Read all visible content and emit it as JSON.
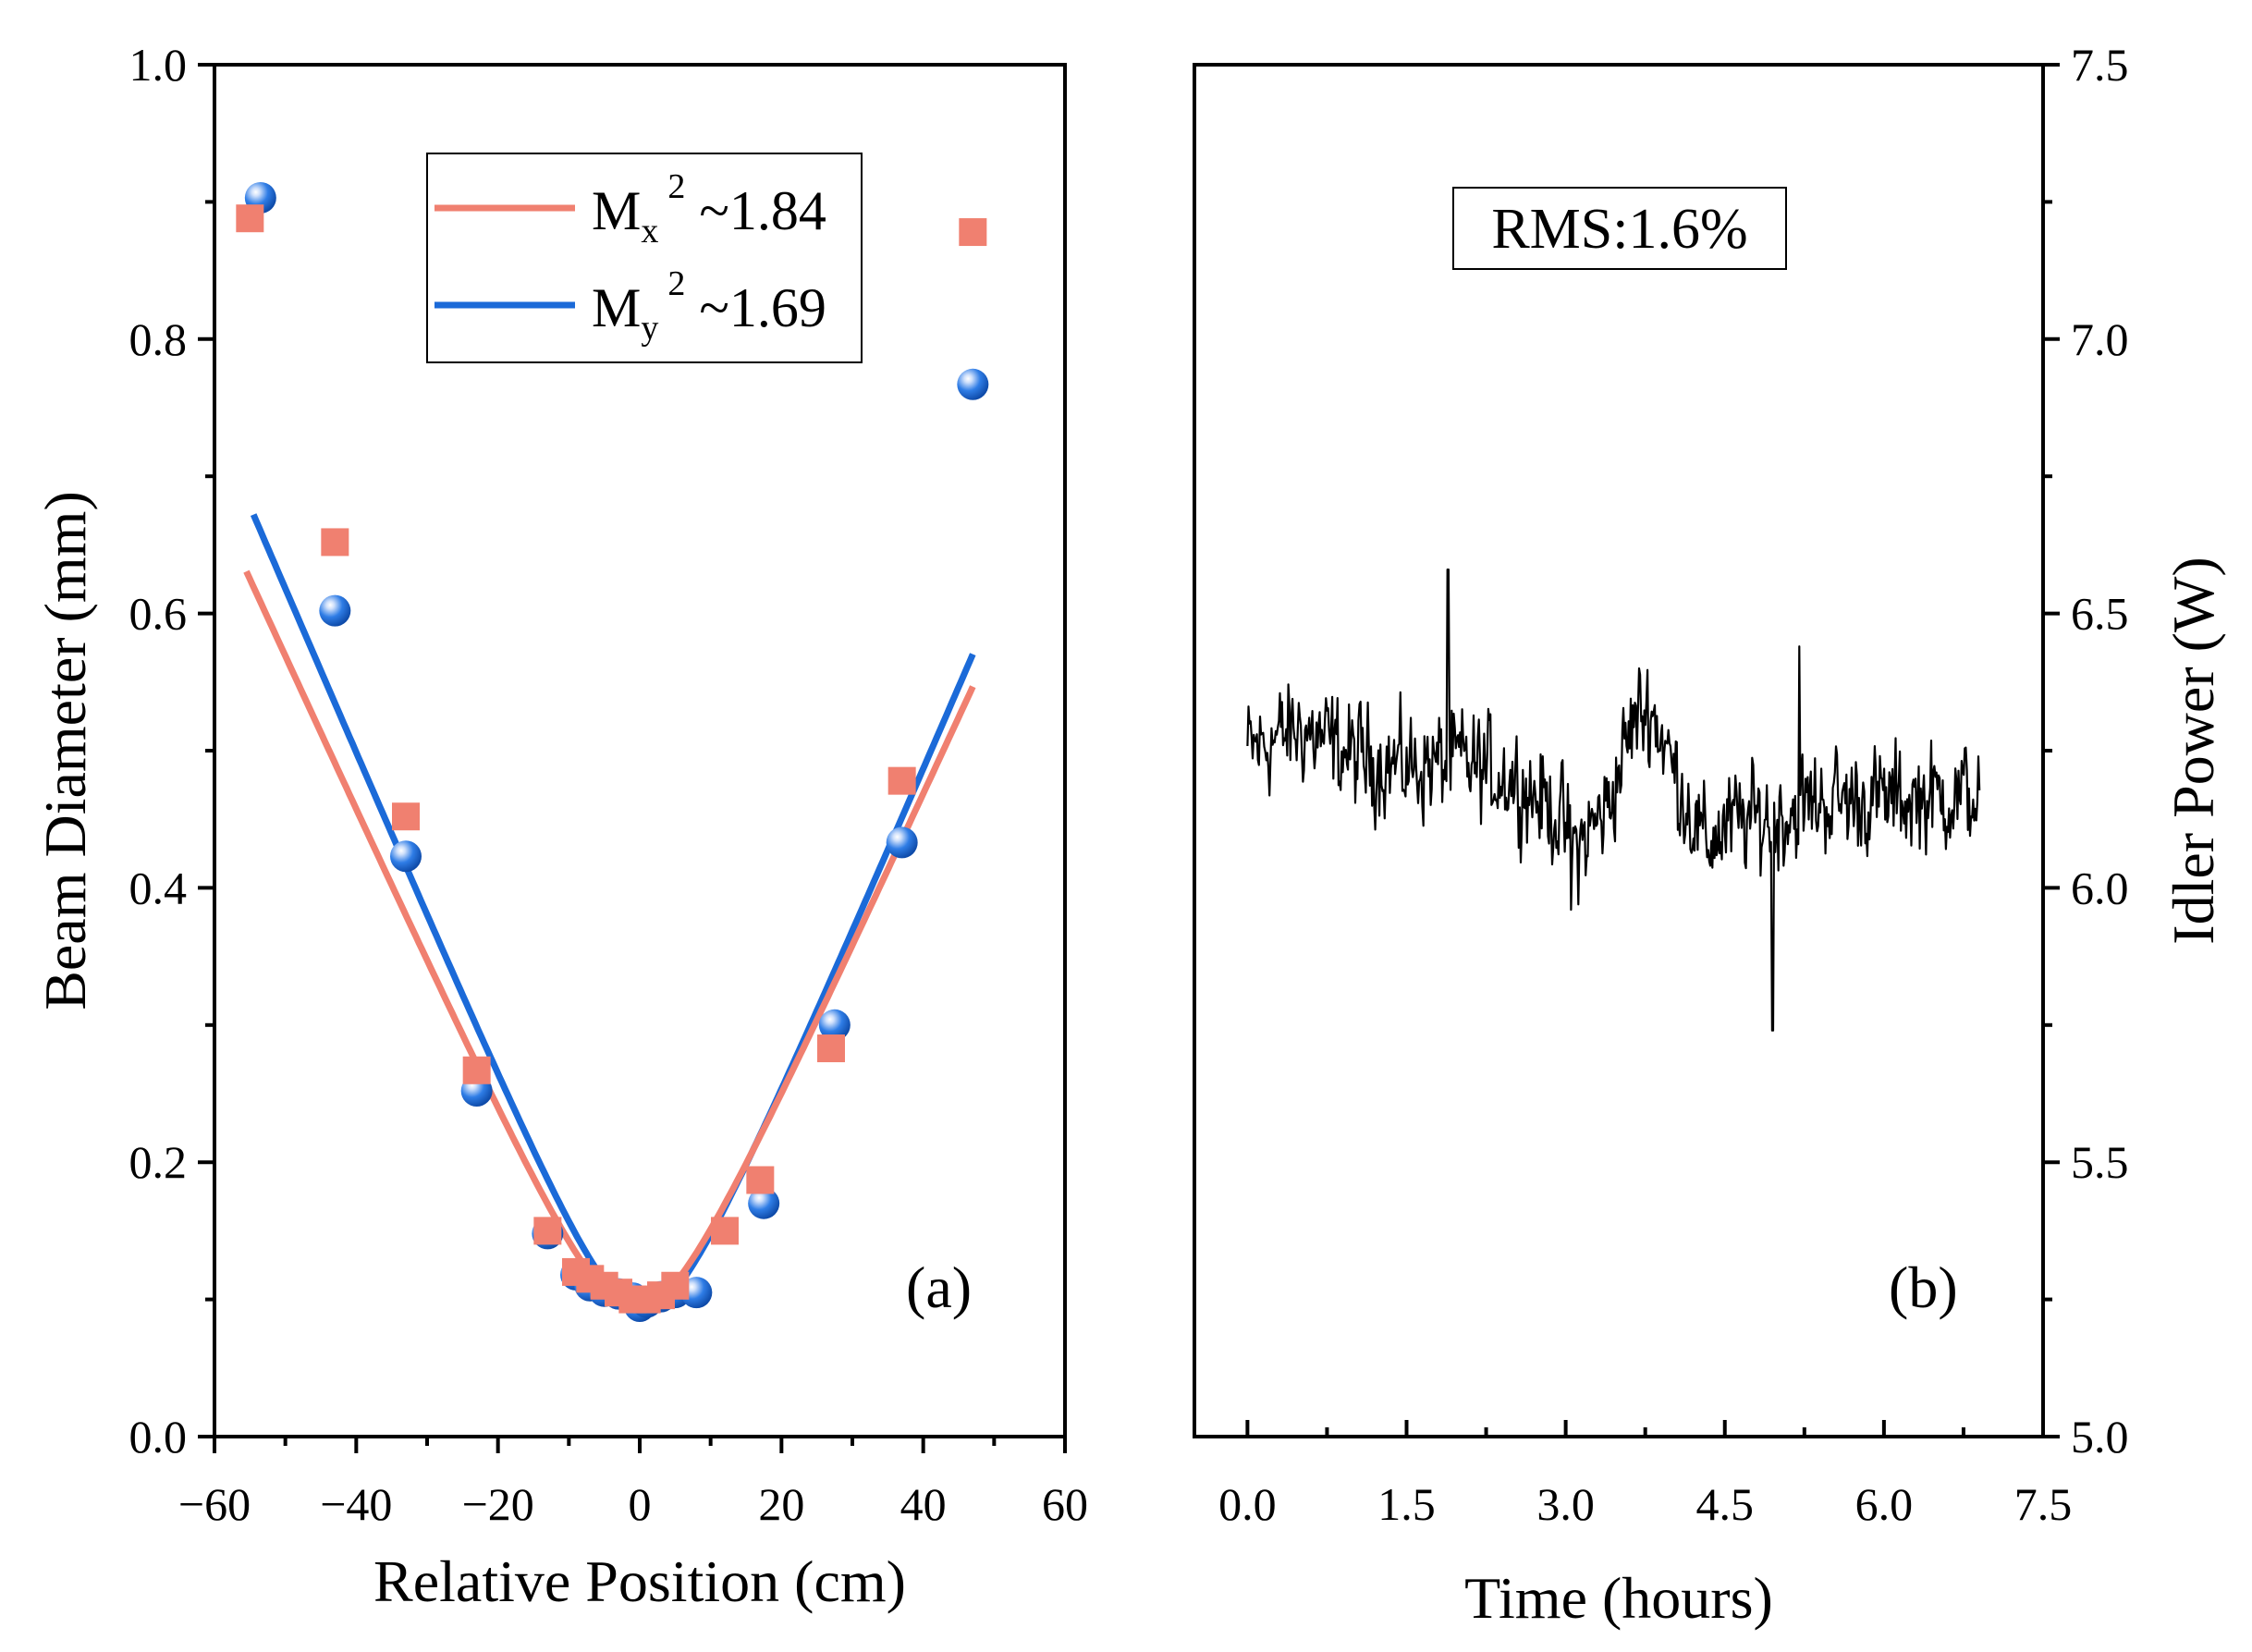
{
  "chart_data": [
    {
      "type": "scatter",
      "panel": "(a)",
      "xlabel": "Relative Position (cm)",
      "ylabel": "Beam Diameter (mm)",
      "xlim": [
        -60,
        60
      ],
      "ylim": [
        0.0,
        1.0
      ],
      "xticks": [
        -60,
        -40,
        -20,
        0,
        20,
        40,
        60
      ],
      "xtick_labels": [
        "−60",
        "−40",
        "−20",
        "0",
        "20",
        "40",
        "60"
      ],
      "yticks": [
        0.0,
        0.2,
        0.4,
        0.6,
        0.8,
        1.0
      ],
      "ytick_labels": [
        "0.0",
        "0.2",
        "0.4",
        "0.6",
        "0.8",
        "1.0"
      ],
      "legend_position": "top-center",
      "legend": [
        {
          "main": "M",
          "sub": "x",
          "sup": "2",
          "rest": " ~1.84",
          "color": "#F08070"
        },
        {
          "main": "M",
          "sub": "y",
          "sup": "2",
          "rest": " ~1.69",
          "color": "#1B6AD8"
        }
      ],
      "series": [
        {
          "name": "Mx",
          "color": "#F08070",
          "marker": "square",
          "x": [
            -55,
            -43,
            -33,
            -23,
            -13,
            -9,
            -7,
            -5,
            -3,
            -1,
            1,
            3,
            5,
            12,
            17,
            27,
            37,
            47
          ],
          "y": [
            0.888,
            0.652,
            0.452,
            0.267,
            0.15,
            0.12,
            0.115,
            0.11,
            0.105,
            0.1,
            0.1,
            0.103,
            0.11,
            0.15,
            0.187,
            0.283,
            0.478,
            0.878
          ],
          "fit": {
            "w0": 0.093,
            "x0": -0.5,
            "zr": 8.2,
            "xrange": [
              -55.5,
              47
            ]
          }
        },
        {
          "name": "My",
          "color": "#1B6AD8",
          "marker": "sphere",
          "x": [
            -53.5,
            -43,
            -33,
            -23,
            -13,
            -9,
            -7,
            -5,
            -3,
            -1,
            0,
            1,
            3,
            5,
            8,
            17.5,
            27.5,
            37,
            47
          ],
          "y": [
            0.903,
            0.602,
            0.423,
            0.252,
            0.148,
            0.118,
            0.11,
            0.106,
            0.104,
            0.101,
            0.095,
            0.098,
            0.102,
            0.105,
            0.105,
            0.17,
            0.3,
            0.433,
            0.767
          ],
          "fit": {
            "w0": 0.092,
            "x0": 0.5,
            "zr": 7.6,
            "xrange": [
              -54.5,
              47
            ]
          }
        }
      ]
    },
    {
      "type": "line",
      "panel": "(b)",
      "xlabel": "Time (hours)",
      "ylabel": "Idler Power (W)",
      "xlim": [
        -0.5,
        7.5
      ],
      "ylim": [
        5.0,
        7.5
      ],
      "xticks": [
        0.0,
        1.5,
        3.0,
        4.5,
        6.0,
        7.5
      ],
      "xtick_labels": [
        "0.0",
        "1.5",
        "3.0",
        "4.5",
        "6.0",
        "7.5"
      ],
      "yticks": [
        5.0,
        5.5,
        6.0,
        6.5,
        7.0,
        7.5
      ],
      "ytick_labels": [
        "5.0",
        "5.5",
        "6.0",
        "6.5",
        "7.0",
        "7.5"
      ],
      "annotation": "RMS:1.6%",
      "series": [
        {
          "name": "Idler Power",
          "color": "#000000",
          "t_start": 0.0,
          "t_end": 6.9,
          "n_points": 700,
          "noise_amplitude": 0.065,
          "baseline": [
            [
              0.0,
              6.25
            ],
            [
              0.5,
              6.29
            ],
            [
              1.0,
              6.24
            ],
            [
              1.5,
              6.22
            ],
            [
              2.0,
              6.23
            ],
            [
              2.5,
              6.2
            ],
            [
              2.9,
              6.14
            ],
            [
              3.1,
              6.07
            ],
            [
              3.4,
              6.15
            ],
            [
              3.65,
              6.31
            ],
            [
              3.8,
              6.33
            ],
            [
              4.05,
              6.2
            ],
            [
              4.3,
              6.08
            ],
            [
              4.6,
              6.12
            ],
            [
              5.0,
              6.13
            ],
            [
              5.4,
              6.16
            ],
            [
              6.0,
              6.16
            ],
            [
              6.9,
              6.17
            ]
          ],
          "spikes": [
            [
              1.89,
              6.58
            ],
            [
              3.05,
              5.96
            ],
            [
              4.95,
              5.74
            ],
            [
              5.2,
              6.44
            ]
          ]
        }
      ]
    }
  ]
}
